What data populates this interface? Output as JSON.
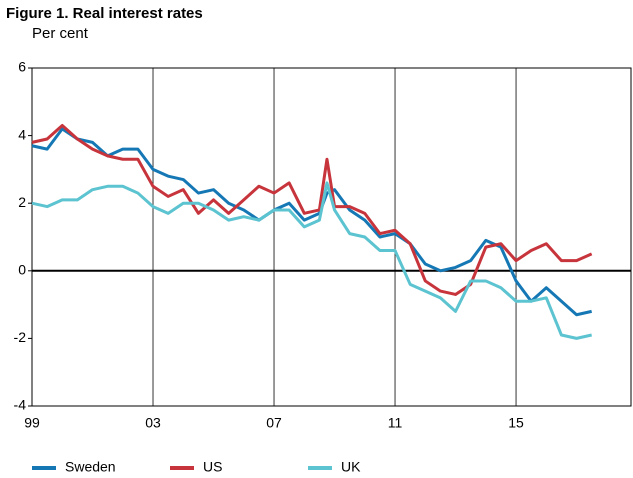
{
  "chart_data": {
    "type": "line",
    "title": "Figure 1. Real interest rates",
    "subtitle": "Per cent",
    "x": [
      1999,
      1999.5,
      2000,
      2000.5,
      2001,
      2001.5,
      2002,
      2002.5,
      2003,
      2003.5,
      2004,
      2004.5,
      2005,
      2005.5,
      2006,
      2006.5,
      2007,
      2007.5,
      2008,
      2008.5,
      2008.75,
      2009,
      2009.5,
      2010,
      2010.5,
      2011,
      2011.5,
      2012,
      2012.5,
      2013,
      2013.5,
      2014,
      2014.5,
      2015,
      2015.5,
      2016,
      2016.5,
      2017,
      2017.5
    ],
    "series": [
      {
        "name": "Sweden",
        "color": "#1578b5",
        "values": [
          3.7,
          3.6,
          4.2,
          3.9,
          3.8,
          3.4,
          3.6,
          3.6,
          3.0,
          2.8,
          2.7,
          2.3,
          2.4,
          2.0,
          1.8,
          1.5,
          1.8,
          2.0,
          1.5,
          1.7,
          2.3,
          2.4,
          1.8,
          1.5,
          1.0,
          1.1,
          0.8,
          0.2,
          0.0,
          0.1,
          0.3,
          0.9,
          0.7,
          -0.3,
          -0.9,
          -0.5,
          -0.9,
          -1.3,
          -1.2
        ]
      },
      {
        "name": "US",
        "color": "#c7343b",
        "values": [
          3.8,
          3.9,
          4.3,
          3.9,
          3.6,
          3.4,
          3.3,
          3.3,
          2.5,
          2.2,
          2.4,
          1.7,
          2.1,
          1.7,
          2.1,
          2.5,
          2.3,
          2.6,
          1.7,
          1.8,
          3.3,
          1.9,
          1.9,
          1.7,
          1.1,
          1.2,
          0.8,
          -0.3,
          -0.6,
          -0.7,
          -0.4,
          0.7,
          0.8,
          0.3,
          0.6,
          0.8,
          0.3,
          0.3,
          0.5
        ]
      },
      {
        "name": "UK",
        "color": "#5cc3d0",
        "values": [
          2.0,
          1.9,
          2.1,
          2.1,
          2.4,
          2.5,
          2.5,
          2.3,
          1.9,
          1.7,
          2.0,
          2.0,
          1.8,
          1.5,
          1.6,
          1.5,
          1.8,
          1.8,
          1.3,
          1.5,
          2.6,
          1.8,
          1.1,
          1.0,
          0.6,
          0.6,
          -0.4,
          -0.6,
          -0.8,
          -1.2,
          -0.3,
          -0.3,
          -0.5,
          -0.9,
          -0.9,
          -0.8,
          -1.9,
          -2.0,
          -1.9
        ]
      }
    ],
    "xlim": [
      1999,
      2018.8
    ],
    "xticks": [
      {
        "value": 1999,
        "label": "99"
      },
      {
        "value": 2003,
        "label": "03"
      },
      {
        "value": 2007,
        "label": "07"
      },
      {
        "value": 2011,
        "label": "11"
      },
      {
        "value": 2015,
        "label": "15"
      }
    ],
    "ylim": [
      -4,
      6
    ],
    "yticks": [
      -4,
      -2,
      0,
      2,
      4,
      6
    ],
    "grid": "x"
  }
}
